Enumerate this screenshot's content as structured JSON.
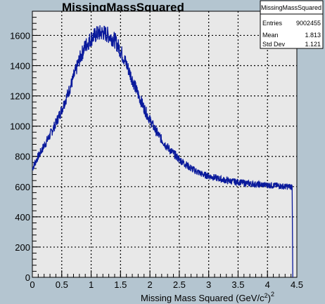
{
  "chart_data": {
    "type": "line",
    "title": "MissingMassSquared",
    "xlabel": "Missing Mass Squared (GeV/c",
    "xlabel_sup1": "2",
    "xlabel_close": ")",
    "xlabel_sup2": "2",
    "ylabel": "",
    "xlim": [
      0,
      4.5
    ],
    "ylim": [
      0,
      1760
    ],
    "x_ticks": [
      0,
      0.5,
      1,
      1.5,
      2,
      2.5,
      3,
      3.5,
      4,
      4.5
    ],
    "x_tick_labels": [
      "0",
      "0.5",
      "1",
      "1.5",
      "2",
      "2.5",
      "3",
      "3.5",
      "4",
      "4.5"
    ],
    "y_ticks": [
      0,
      200,
      400,
      600,
      800,
      1000,
      1200,
      1400,
      1600
    ],
    "y_tick_labels": [
      "0",
      "200",
      "400",
      "600",
      "800",
      "1000",
      "1200",
      "1400",
      "1600"
    ],
    "grid": true,
    "series": [
      {
        "color": "#0a1a9c",
        "x": [
          0.0,
          0.1,
          0.2,
          0.3,
          0.4,
          0.5,
          0.6,
          0.7,
          0.8,
          0.9,
          1.0,
          1.1,
          1.2,
          1.3,
          1.4,
          1.5,
          1.6,
          1.7,
          1.8,
          1.9,
          2.0,
          2.1,
          2.2,
          2.3,
          2.4,
          2.5,
          2.6,
          2.7,
          2.8,
          2.9,
          3.0,
          3.1,
          3.2,
          3.3,
          3.4,
          3.5,
          3.6,
          3.7,
          3.8,
          3.9,
          4.0,
          4.1,
          4.2,
          4.3,
          4.4,
          4.42,
          4.43
        ],
        "y": [
          720,
          800,
          870,
          940,
          1020,
          1110,
          1210,
          1320,
          1440,
          1530,
          1580,
          1610,
          1620,
          1600,
          1570,
          1500,
          1410,
          1310,
          1210,
          1120,
          1040,
          970,
          910,
          860,
          820,
          780,
          750,
          720,
          700,
          680,
          670,
          660,
          650,
          640,
          635,
          630,
          625,
          620,
          615,
          612,
          610,
          608,
          605,
          600,
          600,
          590,
          0
        ]
      }
    ],
    "stats": {
      "name": "MissingMassSquared",
      "rows": [
        {
          "label": "Entries",
          "value": "9002455"
        },
        {
          "label": "Mean",
          "value": "1.813"
        },
        {
          "label": "Std Dev",
          "value": "1.121"
        }
      ]
    }
  }
}
